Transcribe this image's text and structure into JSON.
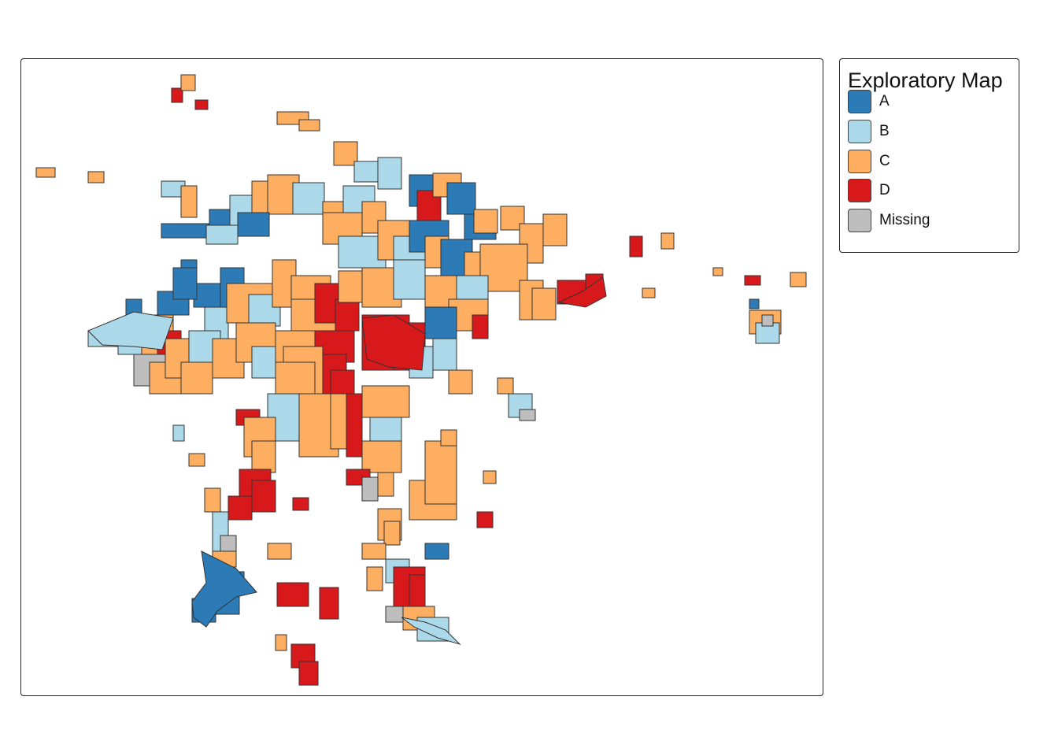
{
  "legend": {
    "title": "Exploratory Map",
    "items": [
      {
        "label": "A",
        "color": "#2c7bb6"
      },
      {
        "label": "B",
        "color": "#abd9e9"
      },
      {
        "label": "C",
        "color": "#fdae61"
      },
      {
        "label": "D",
        "color": "#d7191c"
      },
      {
        "label": "Missing",
        "color": "#bebebe"
      }
    ]
  }
}
